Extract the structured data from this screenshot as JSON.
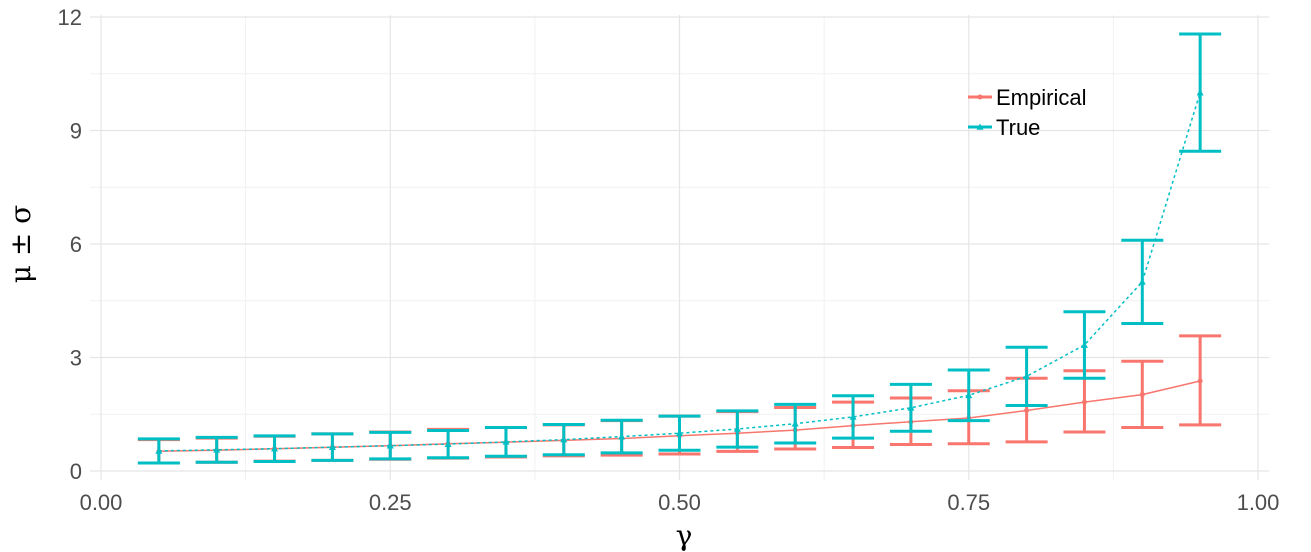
{
  "chart_data": {
    "type": "line",
    "xlabel": "γ",
    "ylabel": "μ ± σ",
    "xlim": [
      0,
      1
    ],
    "ylim": [
      0,
      12
    ],
    "x_ticks": [
      {
        "value": 0.0,
        "label": "0.00"
      },
      {
        "value": 0.25,
        "label": "0.25"
      },
      {
        "value": 0.5,
        "label": "0.50"
      },
      {
        "value": 0.75,
        "label": "0.75"
      },
      {
        "value": 1.0,
        "label": "1.00"
      }
    ],
    "y_ticks": [
      {
        "value": 0,
        "label": "0"
      },
      {
        "value": 3,
        "label": "3"
      },
      {
        "value": 6,
        "label": "6"
      },
      {
        "value": 9,
        "label": "9"
      },
      {
        "value": 12,
        "label": "12"
      }
    ],
    "grid": true,
    "legend_position": "top-right",
    "x": [
      0.05,
      0.1,
      0.15,
      0.2,
      0.25,
      0.3,
      0.35,
      0.4,
      0.45,
      0.5,
      0.55,
      0.6,
      0.65,
      0.7,
      0.75,
      0.8,
      0.85,
      0.9,
      0.95
    ],
    "series": [
      {
        "name": "Empirical",
        "color": "#F8766D",
        "line_style": "solid",
        "marker": "circle",
        "values": [
          0.52,
          0.55,
          0.59,
          0.63,
          0.67,
          0.72,
          0.76,
          0.81,
          0.86,
          0.93,
          1.0,
          1.08,
          1.2,
          1.3,
          1.4,
          1.6,
          1.82,
          2.02,
          2.38
        ],
        "lower": [
          0.21,
          0.23,
          0.26,
          0.28,
          0.31,
          0.34,
          0.37,
          0.4,
          0.42,
          0.45,
          0.52,
          0.58,
          0.62,
          0.7,
          0.72,
          0.77,
          1.03,
          1.15,
          1.22
        ],
        "upper": [
          0.83,
          0.87,
          0.92,
          0.98,
          1.03,
          1.1,
          1.15,
          1.22,
          1.33,
          1.45,
          1.57,
          1.68,
          1.82,
          1.93,
          2.12,
          2.45,
          2.65,
          2.9,
          3.57
        ]
      },
      {
        "name": "True",
        "color": "#00BFC4",
        "line_style": "dotted",
        "marker": "triangle",
        "values": [
          0.53,
          0.56,
          0.59,
          0.63,
          0.67,
          0.71,
          0.77,
          0.83,
          0.91,
          1.0,
          1.11,
          1.25,
          1.43,
          1.67,
          2.0,
          2.5,
          3.33,
          5.0,
          10.0
        ],
        "lower": [
          0.21,
          0.23,
          0.25,
          0.28,
          0.32,
          0.35,
          0.39,
          0.43,
          0.48,
          0.55,
          0.63,
          0.74,
          0.87,
          1.05,
          1.33,
          1.73,
          2.45,
          3.9,
          8.45
        ],
        "upper": [
          0.85,
          0.89,
          0.93,
          0.98,
          1.02,
          1.07,
          1.15,
          1.23,
          1.34,
          1.45,
          1.59,
          1.76,
          1.99,
          2.29,
          2.67,
          3.27,
          4.21,
          6.1,
          11.55
        ]
      }
    ]
  }
}
